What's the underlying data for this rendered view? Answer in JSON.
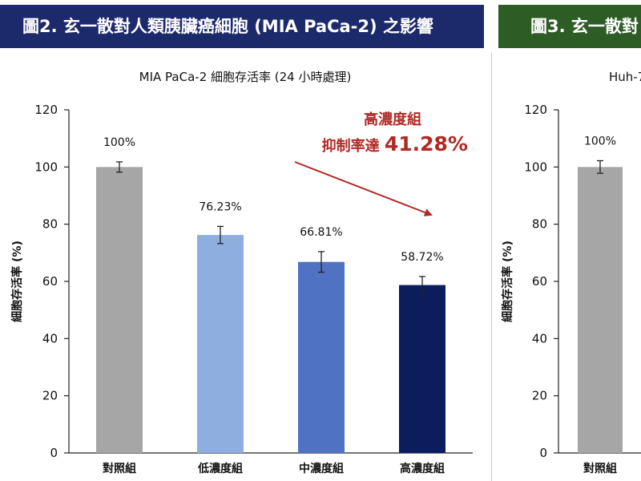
{
  "panels": {
    "left_header": "圖2. 玄一散對人類胰臟癌細胞 (MIA PaCa-2) 之影響",
    "right_header": "圖3. 玄一散對"
  },
  "annotation": {
    "line1": "高濃度組",
    "line2_prefix": "抑制率達 ",
    "line2_value": "41.28%",
    "arrow_color": "#b02a24"
  },
  "chart_data": [
    {
      "type": "bar",
      "title": "MIA PaCa-2 細胞存活率 (24 小時處理)",
      "ylabel": "細胞存活率 (%)",
      "xlabel": "",
      "ylim": [
        0,
        120
      ],
      "yticks": [
        0,
        20,
        40,
        60,
        80,
        100,
        120
      ],
      "categories": [
        "對照組",
        "低濃度組",
        "中濃度組",
        "高濃度組"
      ],
      "values": [
        100,
        76.23,
        66.81,
        58.72
      ],
      "error": [
        1.8,
        3.0,
        3.6,
        3.0
      ],
      "data_labels": [
        "100%",
        "76.23%",
        "66.81%",
        "58.72%"
      ],
      "colors": [
        "#a6a6a6",
        "#8eaee0",
        "#4f73c2",
        "#0c1d5e"
      ],
      "grid": false
    },
    {
      "type": "bar",
      "title": "Huh-7",
      "ylabel": "細胞存活率 (%)",
      "xlabel": "",
      "ylim": [
        0,
        120
      ],
      "yticks": [
        0,
        20,
        40,
        60,
        80,
        100,
        120
      ],
      "categories": [
        "對照組"
      ],
      "values": [
        100
      ],
      "error": [
        2.2
      ],
      "data_labels": [
        "100%"
      ],
      "colors": [
        "#a6a6a6"
      ],
      "grid": false
    }
  ]
}
